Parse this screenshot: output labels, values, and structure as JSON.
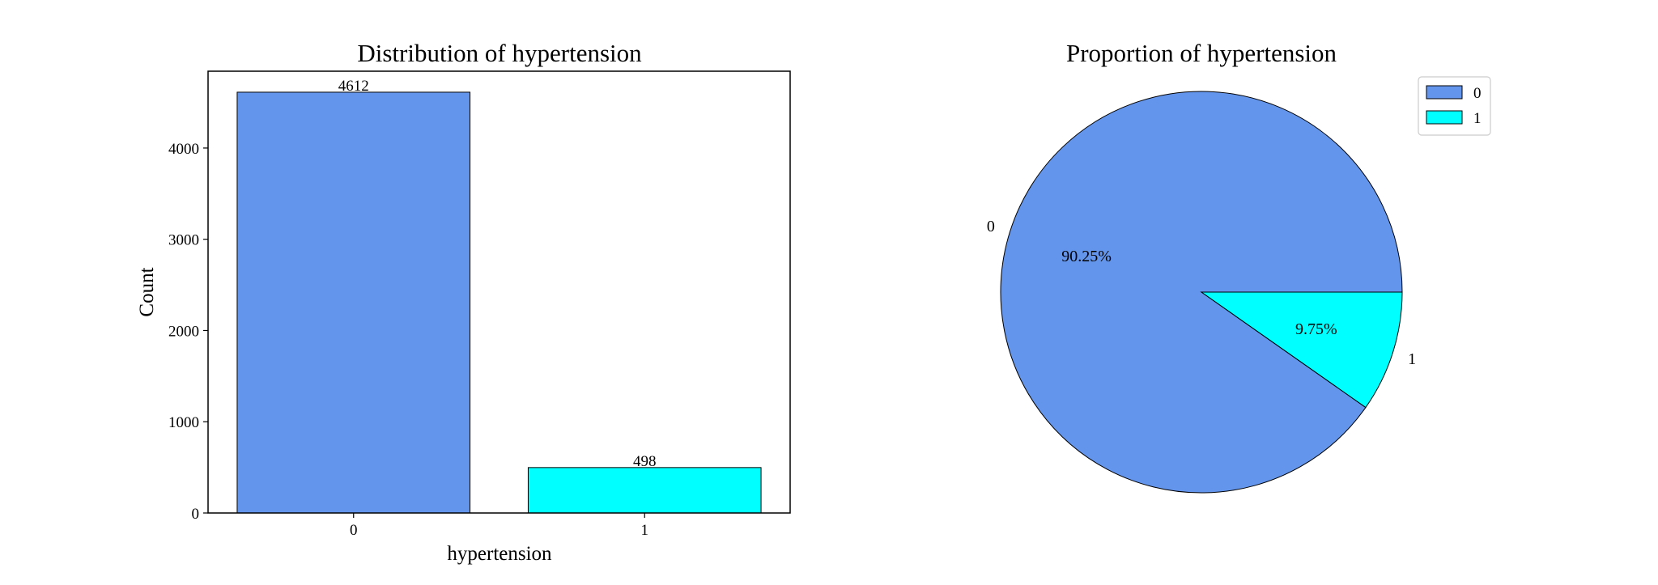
{
  "colors": {
    "bar_0": "#6495ED",
    "bar_1": "#00FFFF",
    "edge": "#000000"
  },
  "chart_data": [
    {
      "type": "bar",
      "title": "Distribution of hypertension",
      "xlabel": "hypertension",
      "ylabel": "Count",
      "categories": [
        "0",
        "1"
      ],
      "values": [
        4612,
        498
      ],
      "data_labels": [
        "4612",
        "498"
      ],
      "ylim": [
        0,
        4842
      ],
      "yticks": [
        0,
        1000,
        2000,
        3000,
        4000
      ],
      "ytick_labels": [
        "0",
        "1000",
        "2000",
        "3000",
        "4000"
      ],
      "grid": false
    },
    {
      "type": "pie",
      "title": "Proportion of hypertension",
      "labels": [
        "0",
        "1"
      ],
      "values": [
        4612,
        498
      ],
      "percent_labels": [
        "90.25%",
        "9.75%"
      ],
      "legend": {
        "entries": [
          "0",
          "1"
        ],
        "position": "upper right"
      }
    }
  ]
}
